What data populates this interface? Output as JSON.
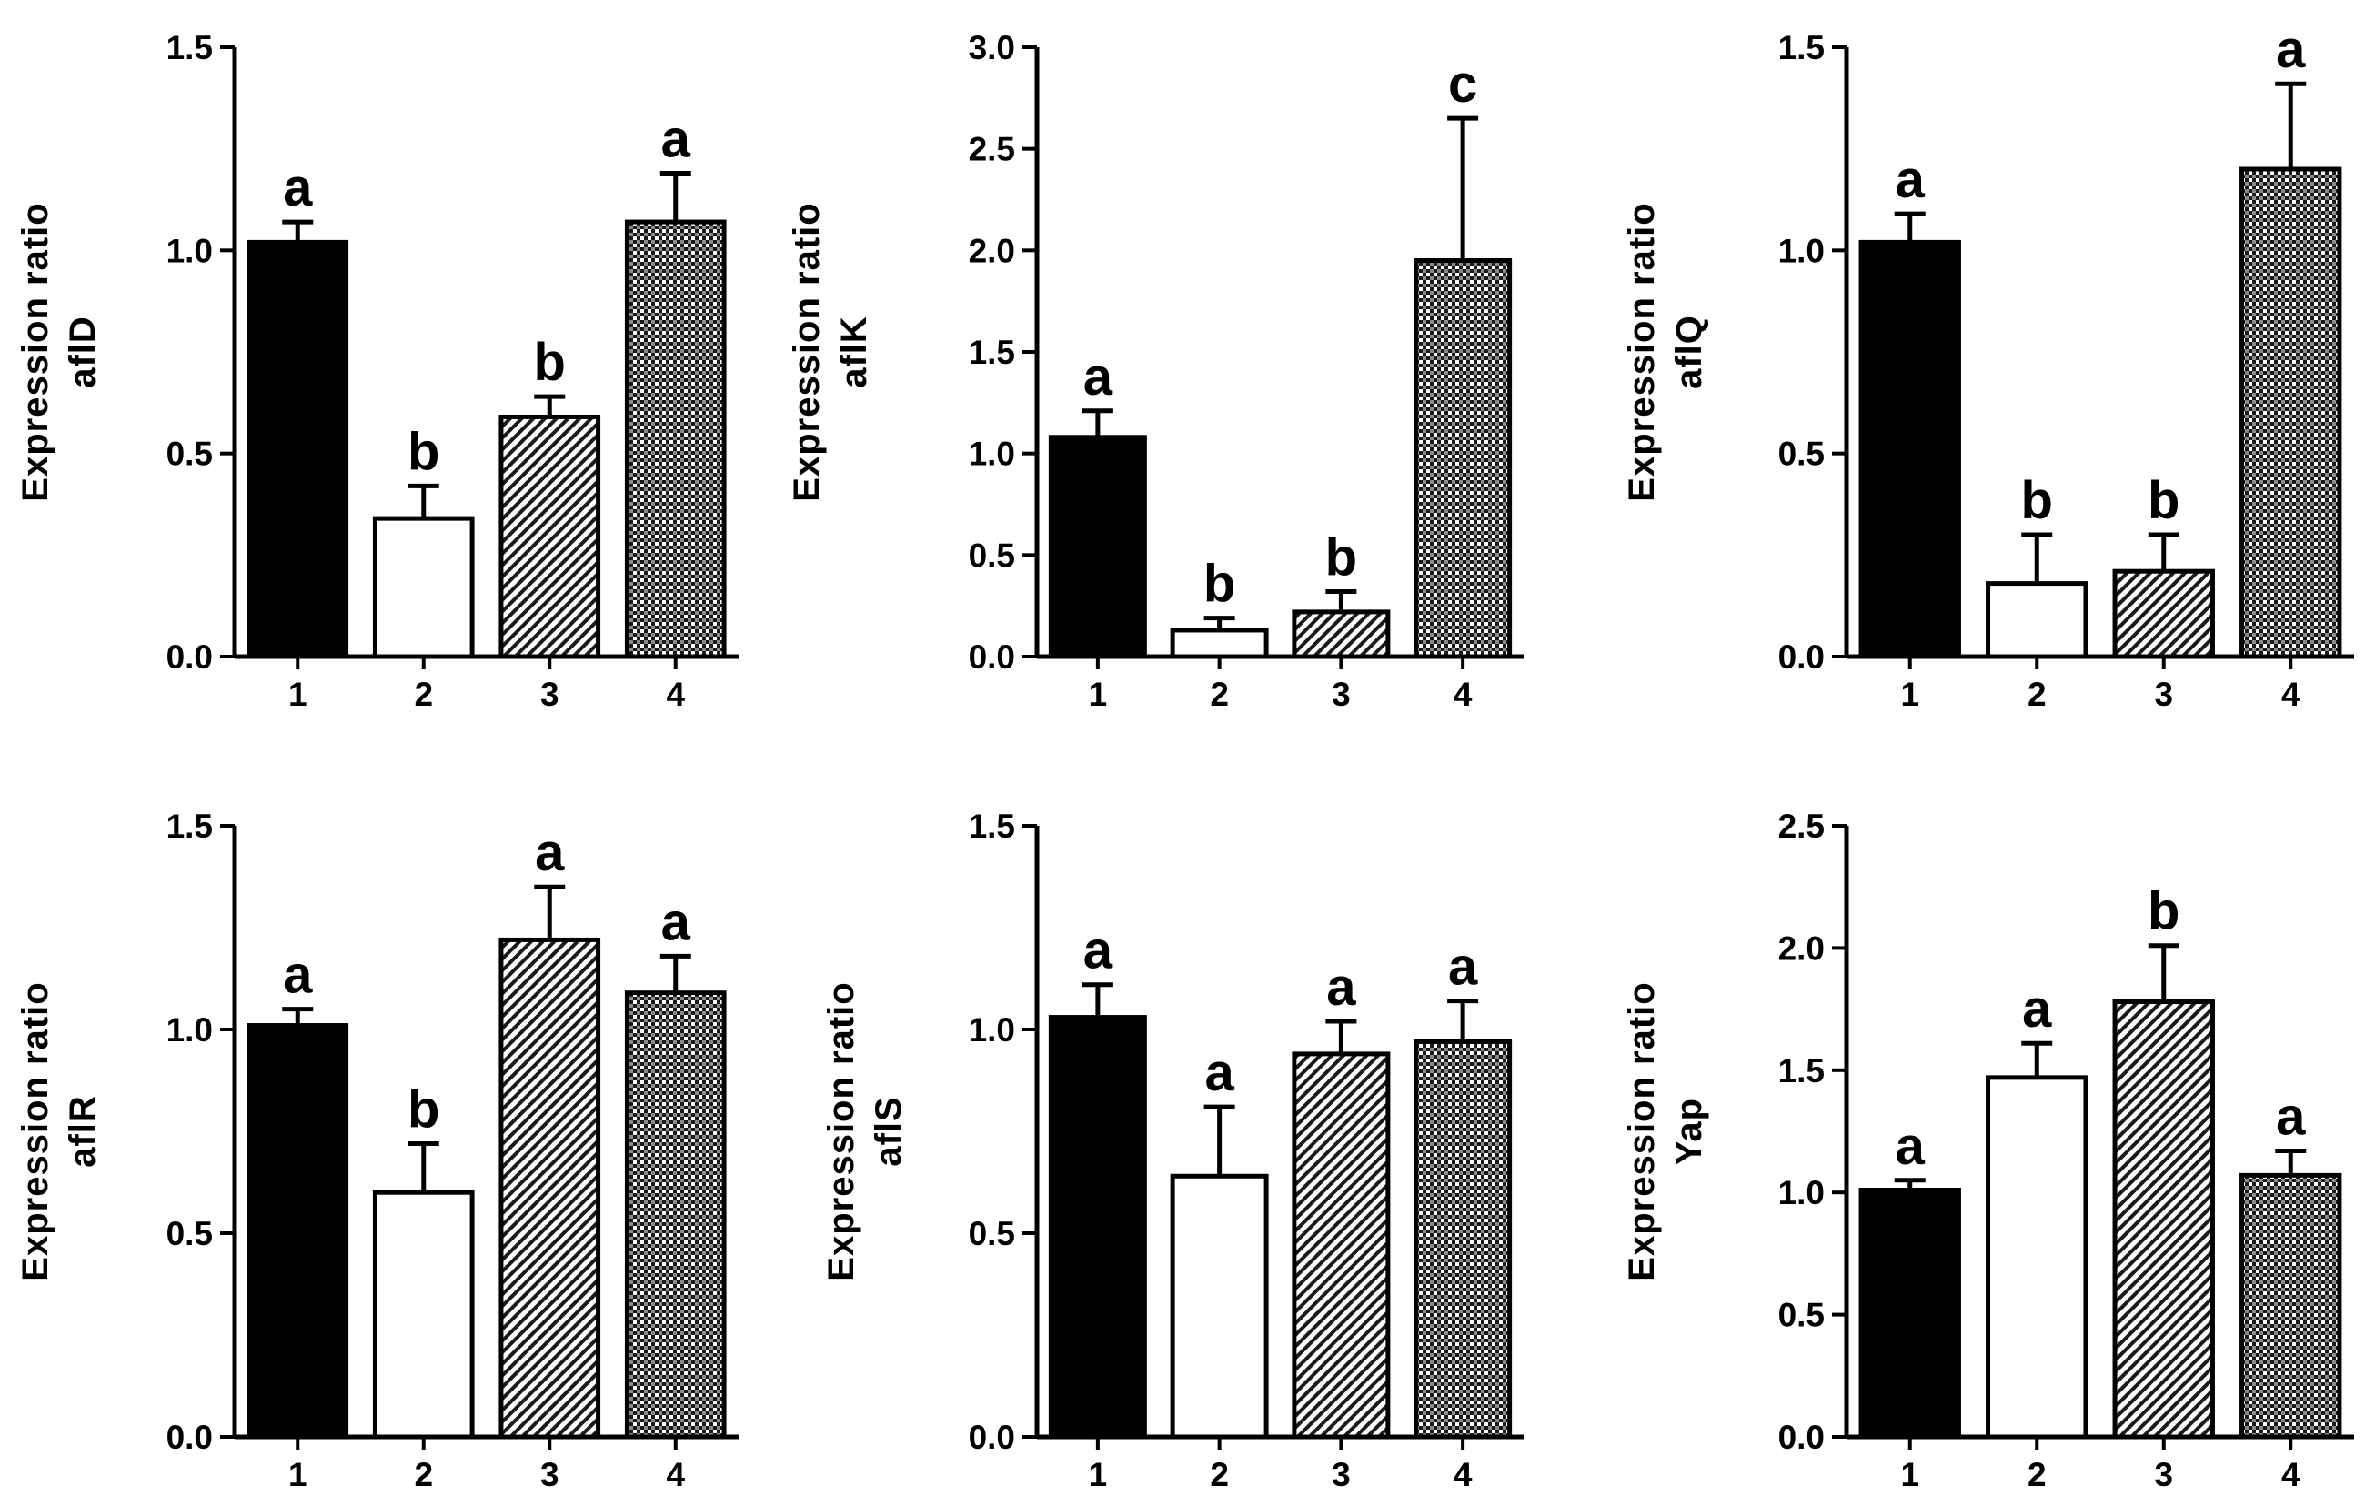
{
  "figure": {
    "colors": {
      "axis": "#000000",
      "bar_fill_1": "#000000",
      "bar_fill_2": "#ffffff",
      "sig_c": "#1a1a66"
    },
    "patterns": [
      "solid-black",
      "white",
      "diagonal-hatch",
      "crosshatch-dots"
    ]
  },
  "chart_data": [
    {
      "type": "bar",
      "ylabel_line1": "Expression ratio",
      "ylabel_line2": "aflD",
      "categories": [
        "1",
        "2",
        "3",
        "4"
      ],
      "values": [
        1.02,
        0.34,
        0.59,
        1.07
      ],
      "errors": [
        0.05,
        0.08,
        0.05,
        0.12
      ],
      "significance": [
        "a",
        "b",
        "b",
        "a"
      ],
      "ylim": [
        0,
        1.5
      ],
      "yticks": [
        "0.0",
        "0.5",
        "1.0",
        "1.5"
      ],
      "ytick_values": [
        0,
        0.5,
        1.0,
        1.5
      ]
    },
    {
      "type": "bar",
      "ylabel_line1": "Expression ratio",
      "ylabel_line2": "aflK",
      "categories": [
        "1",
        "2",
        "3",
        "4"
      ],
      "values": [
        1.08,
        0.13,
        0.22,
        1.95
      ],
      "errors": [
        0.13,
        0.06,
        0.1,
        0.7
      ],
      "significance": [
        "a",
        "b",
        "b",
        "c"
      ],
      "ylim": [
        0,
        3.0
      ],
      "yticks": [
        "0.0",
        "0.5",
        "1.0",
        "1.5",
        "2.0",
        "2.5",
        "3.0"
      ],
      "ytick_values": [
        0,
        0.5,
        1.0,
        1.5,
        2.0,
        2.5,
        3.0
      ]
    },
    {
      "type": "bar",
      "ylabel_line1": "Expression ratio",
      "ylabel_line2": "aflQ",
      "categories": [
        "1",
        "2",
        "3",
        "4"
      ],
      "values": [
        1.02,
        0.18,
        0.21,
        1.2
      ],
      "errors": [
        0.07,
        0.12,
        0.09,
        0.21
      ],
      "significance": [
        "a",
        "b",
        "b",
        "a"
      ],
      "ylim": [
        0,
        1.5
      ],
      "yticks": [
        "0.0",
        "0.5",
        "1.0",
        "1.5"
      ],
      "ytick_values": [
        0,
        0.5,
        1.0,
        1.5
      ]
    },
    {
      "type": "bar",
      "ylabel_line1": "Expression ratio",
      "ylabel_line2": "aflR",
      "categories": [
        "1",
        "2",
        "3",
        "4"
      ],
      "values": [
        1.01,
        0.6,
        1.22,
        1.09
      ],
      "errors": [
        0.04,
        0.12,
        0.13,
        0.09
      ],
      "significance": [
        "a",
        "b",
        "a",
        "a"
      ],
      "ylim": [
        0,
        1.5
      ],
      "yticks": [
        "0.0",
        "0.5",
        "1.0",
        "1.5"
      ],
      "ytick_values": [
        0,
        0.5,
        1.0,
        1.5
      ]
    },
    {
      "type": "bar",
      "ylabel_line1": "Expression ratio",
      "ylabel_line2": "aflS",
      "categories": [
        "1",
        "2",
        "3",
        "4"
      ],
      "values": [
        1.03,
        0.64,
        0.94,
        0.97
      ],
      "errors": [
        0.08,
        0.17,
        0.08,
        0.1
      ],
      "significance": [
        "a",
        "a",
        "a",
        "a"
      ],
      "ylim": [
        0,
        1.5
      ],
      "yticks": [
        "0.0",
        "0.5",
        "1.0",
        "1.5"
      ],
      "ytick_values": [
        0,
        0.5,
        1.0,
        1.5
      ]
    },
    {
      "type": "bar",
      "ylabel_line1": "Expression ratio",
      "ylabel_line2": "Yap",
      "categories": [
        "1",
        "2",
        "3",
        "4"
      ],
      "values": [
        1.01,
        1.47,
        1.78,
        1.07
      ],
      "errors": [
        0.04,
        0.14,
        0.23,
        0.1
      ],
      "significance": [
        "a",
        "a",
        "b",
        "a"
      ],
      "ylim": [
        0,
        2.5
      ],
      "yticks": [
        "0.0",
        "0.5",
        "1.0",
        "1.5",
        "2.0",
        "2.5"
      ],
      "ytick_values": [
        0,
        0.5,
        1.0,
        1.5,
        2.0,
        2.5
      ]
    }
  ]
}
